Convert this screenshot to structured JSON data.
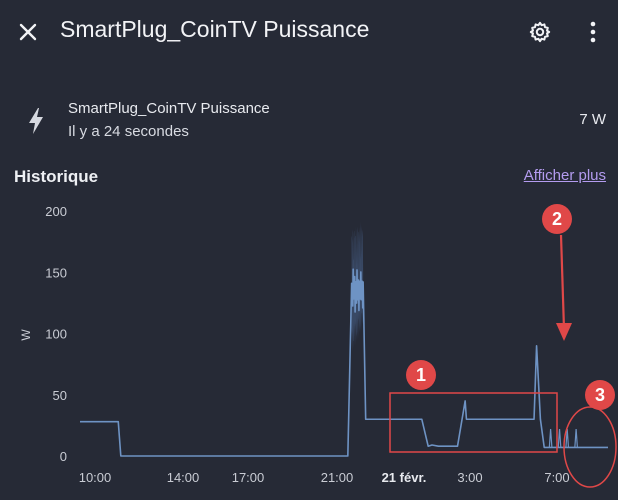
{
  "header": {
    "title": "SmartPlug_CoinTV Puissance",
    "close_icon": "close-icon",
    "settings_icon": "gear-icon",
    "more_icon": "more-vertical-icon"
  },
  "entity": {
    "icon": "flash-icon",
    "name": "SmartPlug_CoinTV Puissance",
    "last_changed": "Il y a 24 secondes",
    "state": "7 W"
  },
  "history": {
    "title": "Historique",
    "more_link": "Afficher plus"
  },
  "annotations": {
    "labels": [
      "1",
      "2",
      "3"
    ],
    "color": "#e04848"
  },
  "colors": {
    "background": "#262a36",
    "line": "#6e93c4",
    "band": "#3d4f6d",
    "link": "#b49cf0",
    "annotation": "#e04848"
  },
  "chart_data": {
    "type": "line",
    "ylabel": "W",
    "ylim": [
      0,
      200
    ],
    "y_ticks": [
      "200",
      "150",
      "100",
      "50",
      "0"
    ],
    "x_ticks": [
      "10:00",
      "14:00",
      "17:00",
      "21:00",
      "21 févr.",
      "3:00",
      "7:00"
    ],
    "x_ticks_bold": [
      false,
      false,
      false,
      false,
      true,
      false,
      false
    ],
    "series": [
      {
        "x": [
          0,
          3,
          3.2,
          21,
          21.3,
          22.2,
          22.4,
          26.8,
          27.3,
          27.6,
          28.1,
          29.6,
          30.2,
          30.3,
          30.6,
          35.6,
          35.8,
          36.1,
          36.4,
          36.8,
          41.4
        ],
        "y": [
          28,
          28,
          0,
          0,
          130,
          135,
          30,
          30,
          8,
          9,
          8,
          8,
          45,
          30,
          30,
          30,
          90,
          30,
          7,
          7,
          7
        ]
      }
    ],
    "band": {
      "x": [
        21.3,
        22.2
      ],
      "low": [
        95,
        115
      ],
      "high": [
        195,
        200
      ]
    }
  }
}
